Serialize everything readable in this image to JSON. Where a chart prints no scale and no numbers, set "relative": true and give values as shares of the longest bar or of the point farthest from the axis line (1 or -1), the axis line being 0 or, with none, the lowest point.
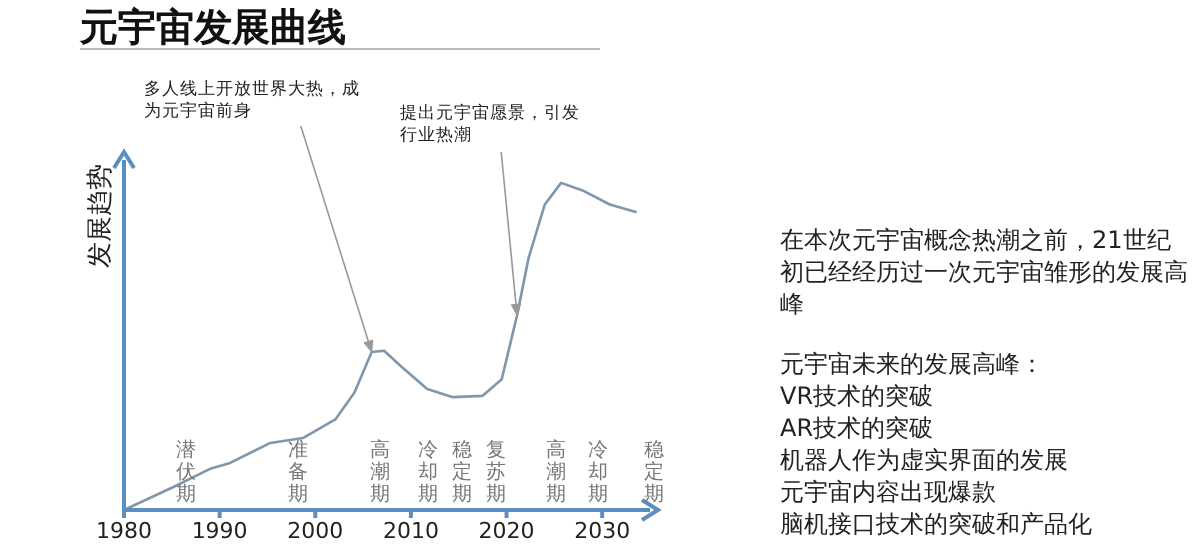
{
  "chart_data": {
    "type": "line",
    "title": "元宇宙发展曲线",
    "ylabel": "发展趋势",
    "relative": true,
    "color": "#7f97ad",
    "x": [
      1980,
      1985,
      1989.1,
      1991.1,
      1995.3,
      1998.7,
      2002.1,
      2004.1,
      2005.9,
      2007.2,
      2008.9,
      2011.7,
      2014.4,
      2017.5,
      2019.5,
      2021.1,
      2022.3,
      2024,
      2025.7,
      2028.1,
      2030.8,
      2033.6
    ],
    "values": [
      0,
      0.068,
      0.127,
      0.144,
      0.205,
      0.22,
      0.277,
      0.359,
      0.483,
      0.487,
      0.441,
      0.37,
      0.345,
      0.349,
      0.4,
      0.595,
      0.77,
      0.934,
      1,
      0.975,
      0.934,
      0.91
    ],
    "xlim": [
      1980,
      2035
    ],
    "xticks": [
      1980,
      1990,
      2000,
      2010,
      2020,
      2030
    ],
    "annotations": [
      {
        "text": "多人线上开放世界大热，成为元宇宙前身",
        "x": 2005.9,
        "y": 0.483
      },
      {
        "text": "提出元宇宙愿景，引发行业热潮",
        "x": 2021.1,
        "y": 0.595
      },
      "潜伏期",
      "准备期",
      "高潮期",
      "冷却期",
      "稳定期",
      "复苏期",
      "高潮期",
      "冷却期",
      "稳定期",
      "在本次元宇宙概念热潮之前，21世纪初已经经历过一次元宇宙雏形的发展高峰",
      "元宇宙未来的发展高峰：",
      "VR技术的突破",
      "AR技术的突破",
      "机器人作为虚实界面的发展",
      "元宇宙内容出现爆款",
      "脑机接口技术的突破和产品化"
    ]
  }
}
